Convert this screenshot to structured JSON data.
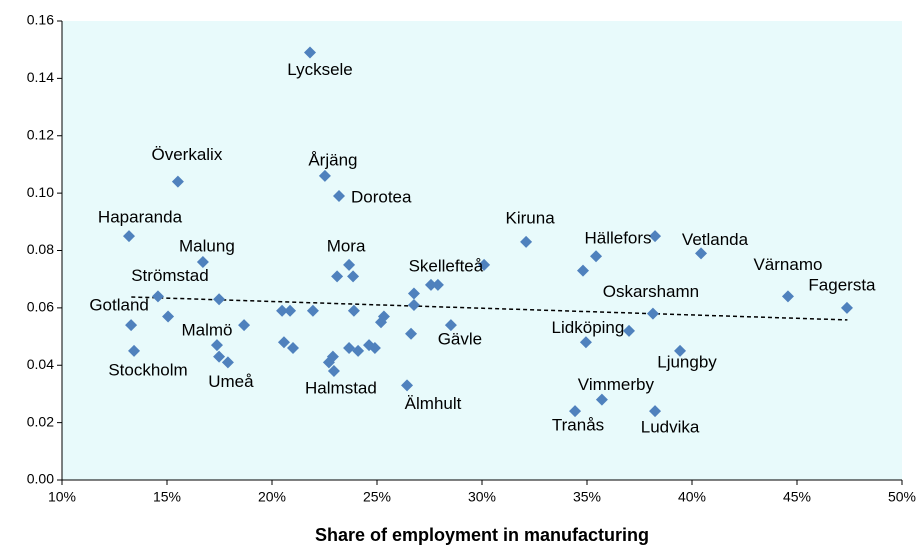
{
  "chart_data": {
    "type": "scatter",
    "xlabel": "Share of employment in manufacturing",
    "color": "#4f81bd",
    "x": [
      21.81,
      15.52,
      22.52,
      23.19,
      13.19,
      16.71,
      23.67,
      32.1,
      35.43,
      40.43,
      38.24,
      34.81,
      44.57,
      47.38,
      38.14,
      37.0,
      34.95,
      39.43,
      35.71,
      34.43,
      38.24,
      27.9,
      27.57,
      30.1,
      14.57,
      13.29,
      13.43,
      17.38,
      17.48,
      17.9,
      18.67,
      15.05,
      17.48,
      20.48,
      20.86,
      20.57,
      21.0,
      21.95,
      23.1,
      23.86,
      23.9,
      22.71,
      22.9,
      22.95,
      23.67,
      24.1,
      24.62,
      24.9,
      25.19,
      25.33,
      26.76,
      26.76,
      26.62,
      26.43,
      28.52
    ],
    "values": [
      0.149,
      0.104,
      0.106,
      0.099,
      0.085,
      0.076,
      0.075,
      0.083,
      0.078,
      0.079,
      0.085,
      0.073,
      0.064,
      0.06,
      0.058,
      0.052,
      0.048,
      0.045,
      0.028,
      0.024,
      0.024,
      0.068,
      0.068,
      0.075,
      0.064,
      0.054,
      0.045,
      0.047,
      0.043,
      0.041,
      0.054,
      0.057,
      0.063,
      0.059,
      0.059,
      0.048,
      0.046,
      0.059,
      0.071,
      0.071,
      0.059,
      0.041,
      0.043,
      0.038,
      0.046,
      0.045,
      0.047,
      0.046,
      0.055,
      0.057,
      0.065,
      0.061,
      0.051,
      0.033,
      0.054
    ],
    "labels": [
      "Lycksele",
      "Överkalix",
      "Årjäng",
      "Dorotea",
      "Haparanda",
      "Malung",
      "Mora",
      "Kiruna",
      "Hällefors",
      "Vetlanda",
      null,
      null,
      "Värnamo",
      "Fagersta",
      "Oskarshamn",
      null,
      "Lidköping",
      "Ljungby",
      "Vimmerby",
      "Tranås",
      "Ludvika",
      "Skellefteå",
      null,
      null,
      "Strömstad",
      "Gotland",
      "Stockholm",
      "Malmö",
      null,
      "Umeå",
      null,
      null,
      null,
      null,
      null,
      null,
      null,
      null,
      null,
      null,
      null,
      null,
      null,
      "Halmstad",
      null,
      null,
      null,
      null,
      null,
      null,
      null,
      null,
      null,
      "Älmhult",
      "Gävle"
    ],
    "trendline": {
      "x": [
        13.3,
        47.4
      ],
      "y": [
        0.0638,
        0.0558
      ]
    },
    "xlim": [
      10,
      50
    ],
    "xticks": [
      {
        "value": 10,
        "label": "10%"
      },
      {
        "value": 15,
        "label": "15%"
      },
      {
        "value": 20,
        "label": "20%"
      },
      {
        "value": 25,
        "label": "25%"
      },
      {
        "value": 30,
        "label": "30%"
      },
      {
        "value": 35,
        "label": "35%"
      },
      {
        "value": 40,
        "label": "40%"
      },
      {
        "value": 45,
        "label": "45%"
      },
      {
        "value": 50,
        "label": "50%"
      }
    ],
    "ylim": [
      0,
      0.16
    ],
    "yticks": [
      {
        "value": 0,
        "label": "0.00"
      },
      0.02,
      0.04,
      0.06,
      0.08,
      {
        "value": 0.1,
        "label": "0.10"
      },
      0.12,
      0.14,
      0.16
    ],
    "grid": false
  }
}
